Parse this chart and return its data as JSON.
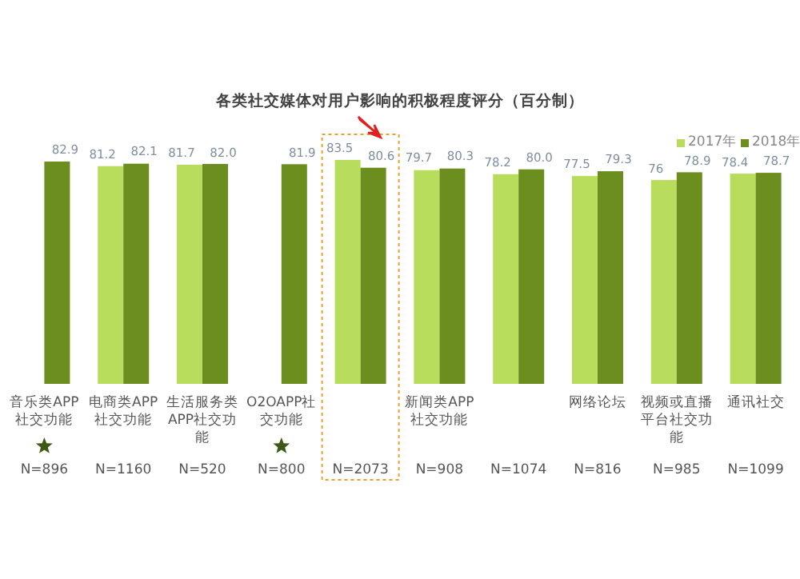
{
  "chart_data": {
    "type": "bar",
    "title": "各类社交媒体对用户影响的积极程度评分（百分制）",
    "categories": [
      "音乐类APP社交功能",
      "电商类APP社交功能",
      "生活服务类APP社交功能",
      "O2OAPP社交功能",
      null,
      "新闻类APP社交功能",
      null,
      "网络论坛",
      "视频或直播平台社交功能",
      "通讯社交"
    ],
    "series": [
      {
        "name": "2017年",
        "color": "#b8dc5c",
        "values": [
          null,
          81.2,
          81.7,
          null,
          83.5,
          79.7,
          78.2,
          77.5,
          76,
          78.4
        ],
        "value_labels": [
          null,
          "81.2",
          "81.7",
          null,
          "83.5",
          "79.7",
          "78.2",
          "77.5",
          "76",
          "78.4"
        ]
      },
      {
        "name": "2018年",
        "color": "#6b8e1f",
        "values": [
          82.9,
          82.1,
          82.0,
          81.9,
          80.6,
          80.3,
          80.0,
          79.3,
          78.9,
          78.7
        ],
        "value_labels": [
          "82.9",
          "82.1",
          "82.0",
          "81.9",
          "80.6",
          "80.3",
          "80.0",
          "79.3",
          "78.9",
          "78.7"
        ]
      }
    ],
    "legend": "top right",
    "annotations": [
      "N=896",
      "N=1160",
      "N=520",
      "N=800",
      "N=2073",
      "N=908",
      "N=1074",
      "N=816",
      "N=985",
      "N=1099"
    ]
  }
}
